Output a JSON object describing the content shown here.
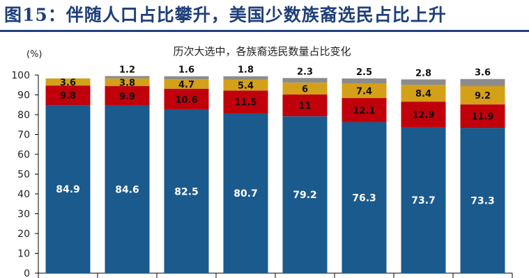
{
  "figure": {
    "title": "图15：伴随人口占比攀升，美国少数族裔选民占比上升"
  },
  "chart_data": {
    "type": "bar",
    "stacked": true,
    "title": "历次大选中，各族裔选民数量占比变化",
    "ylabel": "(%)",
    "ylim": [
      0,
      100
    ],
    "yticks": [
      0,
      10,
      20,
      30,
      40,
      50,
      60,
      70,
      80,
      90,
      100
    ],
    "categories": [
      "",
      "",
      "",
      "",
      "",
      "",
      "",
      ""
    ],
    "series": [
      {
        "name": "",
        "color": "#1b5a8c",
        "values": [
          84.9,
          84.6,
          82.5,
          80.7,
          79.2,
          76.3,
          73.7,
          73.3
        ]
      },
      {
        "name": "",
        "color": "#c0000b",
        "values": [
          9.8,
          9.9,
          10.6,
          11.5,
          11,
          12.1,
          12.9,
          11.9
        ]
      },
      {
        "name": "",
        "color": "#d4a017",
        "values": [
          3.6,
          3.8,
          4.7,
          5.4,
          6,
          7.4,
          8.4,
          9.2
        ]
      },
      {
        "name": "",
        "color": "#8c8c8c",
        "values": [
          null,
          1.2,
          1.6,
          1.8,
          2.3,
          2.5,
          2.8,
          3.6
        ]
      }
    ]
  }
}
